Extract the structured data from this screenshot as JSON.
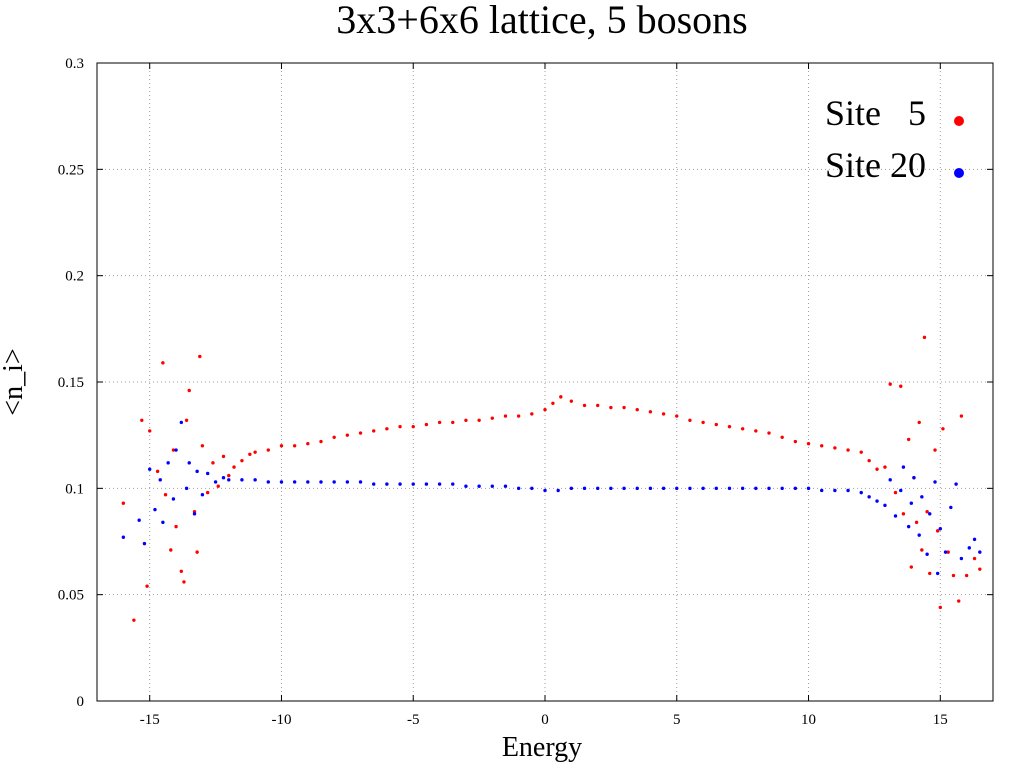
{
  "chart_data": {
    "type": "scatter",
    "title": "3x3+6x6 lattice, 5 bosons",
    "xlabel": "Energy",
    "ylabel": "<n_i>",
    "xlim": [
      -17,
      17
    ],
    "ylim": [
      0,
      0.3
    ],
    "grid": true,
    "legend_position": "top-right",
    "x_ticks": [
      -15,
      -10,
      -5,
      0,
      5,
      10,
      15
    ],
    "x_tick_labels": [
      "-15",
      "-10",
      "-5",
      "0",
      "5",
      "10",
      "15"
    ],
    "y_ticks": [
      0,
      0.05,
      0.1,
      0.15,
      0.2,
      0.25,
      0.3
    ],
    "y_tick_labels": [
      "0",
      "0.05",
      "0.1",
      "0.15",
      "0.2",
      "0.25",
      "0.3"
    ],
    "series": [
      {
        "name": "Site   5",
        "color": "#ff0000",
        "points": [
          [
            -16.0,
            0.093
          ],
          [
            -15.6,
            0.038
          ],
          [
            -15.3,
            0.132
          ],
          [
            -15.1,
            0.054
          ],
          [
            -15.0,
            0.127
          ],
          [
            -14.7,
            0.108
          ],
          [
            -14.5,
            0.159
          ],
          [
            -14.4,
            0.097
          ],
          [
            -14.2,
            0.071
          ],
          [
            -14.1,
            0.118
          ],
          [
            -14.0,
            0.082
          ],
          [
            -13.8,
            0.061
          ],
          [
            -13.7,
            0.056
          ],
          [
            -13.6,
            0.132
          ],
          [
            -13.5,
            0.146
          ],
          [
            -13.3,
            0.089
          ],
          [
            -13.2,
            0.07
          ],
          [
            -13.1,
            0.162
          ],
          [
            -13.0,
            0.12
          ],
          [
            -12.8,
            0.098
          ],
          [
            -12.6,
            0.112
          ],
          [
            -12.4,
            0.101
          ],
          [
            -12.2,
            0.115
          ],
          [
            -12.0,
            0.106
          ],
          [
            -11.8,
            0.11
          ],
          [
            -11.5,
            0.113
          ],
          [
            -11.2,
            0.116
          ],
          [
            -11.0,
            0.117
          ],
          [
            -10.5,
            0.118
          ],
          [
            -10.0,
            0.12
          ],
          [
            -9.5,
            0.12
          ],
          [
            -9.0,
            0.121
          ],
          [
            -8.5,
            0.122
          ],
          [
            -8.0,
            0.124
          ],
          [
            -7.5,
            0.125
          ],
          [
            -7.0,
            0.126
          ],
          [
            -6.5,
            0.127
          ],
          [
            -6.0,
            0.128
          ],
          [
            -5.5,
            0.129
          ],
          [
            -5.0,
            0.129
          ],
          [
            -4.5,
            0.13
          ],
          [
            -4.0,
            0.131
          ],
          [
            -3.5,
            0.131
          ],
          [
            -3.0,
            0.132
          ],
          [
            -2.5,
            0.132
          ],
          [
            -2.0,
            0.133
          ],
          [
            -1.5,
            0.134
          ],
          [
            -1.0,
            0.134
          ],
          [
            -0.5,
            0.135
          ],
          [
            0.0,
            0.137
          ],
          [
            0.3,
            0.14
          ],
          [
            0.6,
            0.143
          ],
          [
            1.0,
            0.141
          ],
          [
            1.5,
            0.139
          ],
          [
            2.0,
            0.139
          ],
          [
            2.5,
            0.138
          ],
          [
            3.0,
            0.138
          ],
          [
            3.5,
            0.137
          ],
          [
            4.0,
            0.136
          ],
          [
            4.5,
            0.135
          ],
          [
            5.0,
            0.134
          ],
          [
            5.5,
            0.132
          ],
          [
            6.0,
            0.131
          ],
          [
            6.5,
            0.13
          ],
          [
            7.0,
            0.129
          ],
          [
            7.5,
            0.128
          ],
          [
            8.0,
            0.127
          ],
          [
            8.5,
            0.126
          ],
          [
            9.0,
            0.124
          ],
          [
            9.5,
            0.122
          ],
          [
            10.0,
            0.121
          ],
          [
            10.5,
            0.12
          ],
          [
            11.0,
            0.119
          ],
          [
            11.5,
            0.118
          ],
          [
            12.0,
            0.117
          ],
          [
            12.3,
            0.113
          ],
          [
            12.6,
            0.109
          ],
          [
            12.9,
            0.11
          ],
          [
            13.1,
            0.149
          ],
          [
            13.3,
            0.098
          ],
          [
            13.5,
            0.148
          ],
          [
            13.6,
            0.088
          ],
          [
            13.8,
            0.123
          ],
          [
            13.9,
            0.063
          ],
          [
            14.0,
            0.105
          ],
          [
            14.1,
            0.084
          ],
          [
            14.2,
            0.131
          ],
          [
            14.3,
            0.071
          ],
          [
            14.4,
            0.171
          ],
          [
            14.5,
            0.089
          ],
          [
            14.6,
            0.06
          ],
          [
            14.8,
            0.118
          ],
          [
            14.9,
            0.08
          ],
          [
            15.0,
            0.044
          ],
          [
            15.1,
            0.128
          ],
          [
            15.3,
            0.07
          ],
          [
            15.5,
            0.059
          ],
          [
            15.7,
            0.047
          ],
          [
            15.8,
            0.134
          ],
          [
            16.0,
            0.059
          ],
          [
            16.3,
            0.067
          ],
          [
            16.5,
            0.062
          ]
        ]
      },
      {
        "name": "Site 20",
        "color": "#0000ff",
        "points": [
          [
            -16.0,
            0.077
          ],
          [
            -15.4,
            0.085
          ],
          [
            -15.2,
            0.074
          ],
          [
            -15.0,
            0.109
          ],
          [
            -14.8,
            0.09
          ],
          [
            -14.6,
            0.104
          ],
          [
            -14.5,
            0.084
          ],
          [
            -14.3,
            0.112
          ],
          [
            -14.1,
            0.095
          ],
          [
            -14.0,
            0.118
          ],
          [
            -13.8,
            0.131
          ],
          [
            -13.6,
            0.1
          ],
          [
            -13.5,
            0.112
          ],
          [
            -13.3,
            0.088
          ],
          [
            -13.2,
            0.108
          ],
          [
            -13.0,
            0.097
          ],
          [
            -12.8,
            0.107
          ],
          [
            -12.5,
            0.103
          ],
          [
            -12.2,
            0.105
          ],
          [
            -12.0,
            0.104
          ],
          [
            -11.5,
            0.104
          ],
          [
            -11.0,
            0.104
          ],
          [
            -10.5,
            0.103
          ],
          [
            -10.0,
            0.103
          ],
          [
            -9.5,
            0.103
          ],
          [
            -9.0,
            0.103
          ],
          [
            -8.5,
            0.103
          ],
          [
            -8.0,
            0.103
          ],
          [
            -7.5,
            0.103
          ],
          [
            -7.0,
            0.103
          ],
          [
            -6.5,
            0.102
          ],
          [
            -6.0,
            0.102
          ],
          [
            -5.5,
            0.102
          ],
          [
            -5.0,
            0.102
          ],
          [
            -4.5,
            0.102
          ],
          [
            -4.0,
            0.102
          ],
          [
            -3.5,
            0.102
          ],
          [
            -3.0,
            0.101
          ],
          [
            -2.5,
            0.101
          ],
          [
            -2.0,
            0.101
          ],
          [
            -1.5,
            0.101
          ],
          [
            -1.0,
            0.1
          ],
          [
            -0.5,
            0.1
          ],
          [
            0.0,
            0.099
          ],
          [
            0.5,
            0.099
          ],
          [
            1.0,
            0.1
          ],
          [
            1.5,
            0.1
          ],
          [
            2.0,
            0.1
          ],
          [
            2.5,
            0.1
          ],
          [
            3.0,
            0.1
          ],
          [
            3.5,
            0.1
          ],
          [
            4.0,
            0.1
          ],
          [
            4.5,
            0.1
          ],
          [
            5.0,
            0.1
          ],
          [
            5.5,
            0.1
          ],
          [
            6.0,
            0.1
          ],
          [
            6.5,
            0.1
          ],
          [
            7.0,
            0.1
          ],
          [
            7.5,
            0.1
          ],
          [
            8.0,
            0.1
          ],
          [
            8.5,
            0.1
          ],
          [
            9.0,
            0.1
          ],
          [
            9.5,
            0.1
          ],
          [
            10.0,
            0.1
          ],
          [
            10.5,
            0.099
          ],
          [
            11.0,
            0.099
          ],
          [
            11.5,
            0.099
          ],
          [
            12.0,
            0.098
          ],
          [
            12.3,
            0.096
          ],
          [
            12.6,
            0.094
          ],
          [
            12.9,
            0.092
          ],
          [
            13.1,
            0.104
          ],
          [
            13.3,
            0.087
          ],
          [
            13.5,
            0.099
          ],
          [
            13.6,
            0.11
          ],
          [
            13.8,
            0.082
          ],
          [
            13.9,
            0.093
          ],
          [
            14.0,
            0.105
          ],
          [
            14.2,
            0.078
          ],
          [
            14.3,
            0.096
          ],
          [
            14.5,
            0.069
          ],
          [
            14.6,
            0.088
          ],
          [
            14.8,
            0.103
          ],
          [
            14.9,
            0.06
          ],
          [
            15.0,
            0.081
          ],
          [
            15.2,
            0.07
          ],
          [
            15.4,
            0.091
          ],
          [
            15.6,
            0.102
          ],
          [
            15.8,
            0.067
          ],
          [
            16.1,
            0.072
          ],
          [
            16.3,
            0.076
          ],
          [
            16.5,
            0.07
          ]
        ]
      }
    ]
  }
}
